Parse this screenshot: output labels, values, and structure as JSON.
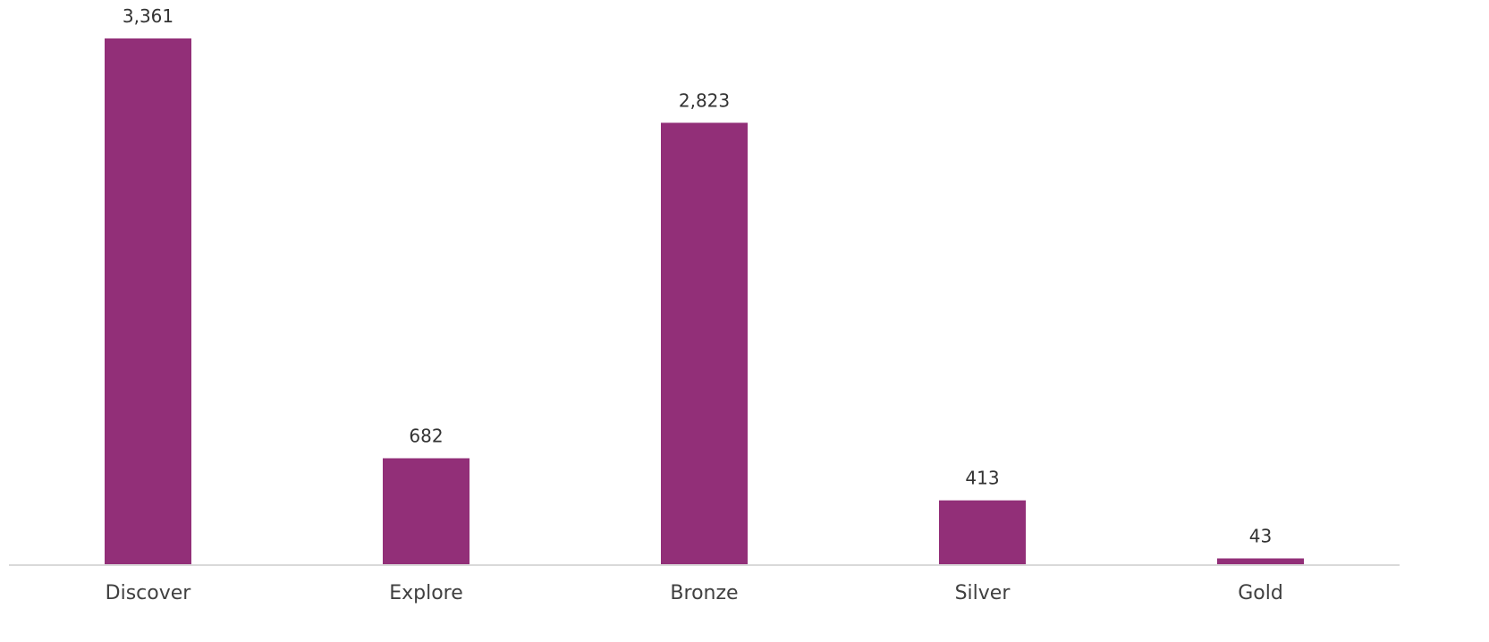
{
  "chart_data": {
    "type": "bar",
    "categories": [
      "Discover",
      "Explore",
      "Bronze",
      "Silver",
      "Gold"
    ],
    "values": [
      3361,
      682,
      2823,
      413,
      43
    ],
    "value_labels": [
      "3,361",
      "682",
      "2,823",
      "413",
      "43"
    ],
    "title": "",
    "xlabel": "",
    "ylabel": "",
    "ylim": [
      0,
      3361
    ],
    "grid": false,
    "legend": "none",
    "bar_color": "#922F78",
    "axis_color": "#D9D9D9"
  }
}
